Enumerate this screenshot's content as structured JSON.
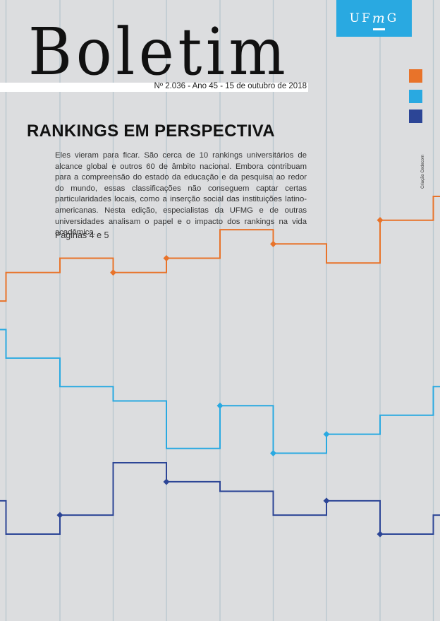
{
  "logo": {
    "text_uf": "UF",
    "text_m": "m",
    "text_g": "G",
    "color": "#29a9e1"
  },
  "masthead": {
    "title": "Boletim",
    "issue": "Nº 2.036 - Ano 45 - 15 de outubro de 2018"
  },
  "swatches": [
    {
      "name": "orange",
      "color": "#e8732a"
    },
    {
      "name": "light-blue",
      "color": "#29a9e1"
    },
    {
      "name": "dark-blue",
      "color": "#2c4596"
    }
  ],
  "headline": "RANKINGS EM PERSPECTIVA",
  "lead": "Eles vieram para ficar. São cerca de 10 rankings universitários de alcance global e outros 60 de âmbito nacional. Embora contribuam para a compreensão do estado da educação e da pesquisa ao redor do mundo, essas classificações não conseguem captar certas particularidades locais, como a inserção social das instituições latino-americanas. Nesta edição, especialistas da UFMG e de outras universidades analisam o papel e o impacto dos rankings na vida acadêmica.",
  "pages": "Páginas 4 e 5",
  "credit": "Criação Cedecom",
  "chart_data": {
    "type": "line",
    "title": "",
    "xlabel": "",
    "ylabel": "",
    "step": true,
    "grid": "vertical",
    "x": [
      0,
      1,
      2,
      3,
      4,
      5,
      6,
      7,
      8,
      9
    ],
    "ylim": [
      0,
      100
    ],
    "series": [
      {
        "name": "orange",
        "color": "#e8732a",
        "values": [
          48,
          54,
          57,
          54,
          57,
          63,
          60,
          56,
          65,
          70
        ],
        "markers": [
          3,
          4,
          6,
          8
        ]
      },
      {
        "name": "light-blue",
        "color": "#29a9e1",
        "values": [
          42,
          36,
          30,
          27,
          17,
          26,
          16,
          20,
          24,
          30
        ],
        "markers": [
          5,
          6,
          7
        ]
      },
      {
        "name": "dark-blue",
        "color": "#2c4596",
        "values": [
          6,
          -1,
          3,
          14,
          10,
          8,
          3,
          6,
          -1,
          3
        ],
        "markers": [
          2,
          4,
          7,
          8
        ]
      }
    ]
  }
}
